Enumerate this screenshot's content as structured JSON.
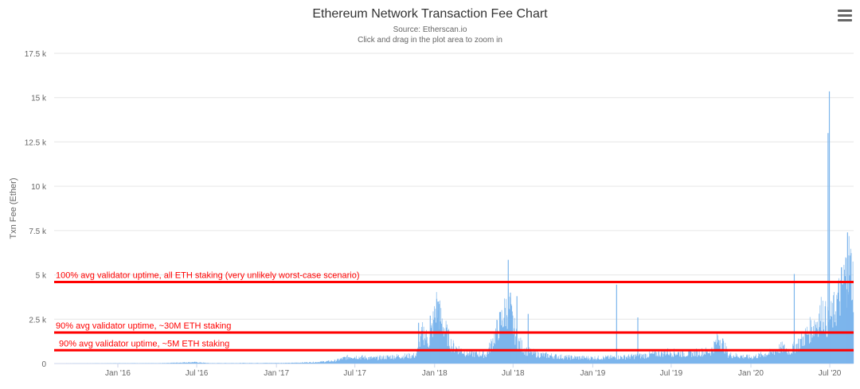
{
  "chart_data": {
    "type": "bar",
    "title": "Ethereum Network Transaction Fee Chart",
    "subtitle": "Source: Etherscan.io",
    "instruction": "Click and drag in the plot area to zoom in",
    "ylabel": "Txn Fee (Ether)",
    "ylim": [
      0,
      17500
    ],
    "y_ticks": [
      {
        "value": 0,
        "label": "0"
      },
      {
        "value": 2500,
        "label": "2.5 k"
      },
      {
        "value": 5000,
        "label": "5 k"
      },
      {
        "value": 7500,
        "label": "7.5 k"
      },
      {
        "value": 10000,
        "label": "10 k"
      },
      {
        "value": 12500,
        "label": "12.5 k"
      },
      {
        "value": 15000,
        "label": "15 k"
      },
      {
        "value": 17500,
        "label": "17.5 k"
      }
    ],
    "x_range": [
      "2015-08-07",
      "2020-08-25"
    ],
    "x_ticks": [
      {
        "date": "2016-01-01",
        "label": "Jan '16"
      },
      {
        "date": "2016-07-01",
        "label": "Jul '16"
      },
      {
        "date": "2017-01-01",
        "label": "Jan '17"
      },
      {
        "date": "2017-07-01",
        "label": "Jul '17"
      },
      {
        "date": "2018-01-01",
        "label": "Jan '18"
      },
      {
        "date": "2018-07-01",
        "label": "Jul '18"
      },
      {
        "date": "2019-01-01",
        "label": "Jan '19"
      },
      {
        "date": "2019-07-01",
        "label": "Jul '19"
      },
      {
        "date": "2020-01-01",
        "label": "Jan '20"
      },
      {
        "date": "2020-07-01",
        "label": "Jul '20"
      }
    ],
    "grid": true,
    "series": [
      {
        "color": "#7cb5ec",
        "points": [
          [
            "2015-08-07",
            0
          ],
          [
            "2015-12-01",
            10
          ],
          [
            "2016-01-15",
            20
          ],
          [
            "2016-04-01",
            15
          ],
          [
            "2016-06-25",
            80
          ],
          [
            "2016-08-01",
            20
          ],
          [
            "2016-12-01",
            30
          ],
          [
            "2017-02-01",
            35
          ],
          [
            "2017-04-01",
            80
          ],
          [
            "2017-05-15",
            150
          ],
          [
            "2017-06-20",
            400
          ],
          [
            "2017-08-15",
            300
          ],
          [
            "2017-10-01",
            400
          ],
          [
            "2017-11-20",
            450
          ],
          [
            "2017-12-05",
            1800
          ],
          [
            "2017-12-20",
            1200
          ],
          [
            "2018-01-05",
            3200
          ],
          [
            "2018-01-20",
            2200
          ],
          [
            "2018-02-10",
            1000
          ],
          [
            "2018-03-15",
            600
          ],
          [
            "2018-05-01",
            500
          ],
          [
            "2018-06-20",
            3300
          ],
          [
            "2018-07-10",
            1300
          ],
          [
            "2018-08-01",
            700
          ],
          [
            "2018-09-01",
            500
          ],
          [
            "2018-11-01",
            350
          ],
          [
            "2019-01-01",
            320
          ],
          [
            "2019-03-01",
            350
          ],
          [
            "2019-05-01",
            450
          ],
          [
            "2019-06-20",
            650
          ],
          [
            "2019-08-01",
            550
          ],
          [
            "2019-10-01",
            700
          ],
          [
            "2019-10-20",
            1500
          ],
          [
            "2019-11-10",
            500
          ],
          [
            "2020-01-01",
            350
          ],
          [
            "2020-02-15",
            600
          ],
          [
            "2020-03-12",
            900
          ],
          [
            "2020-04-01",
            700
          ],
          [
            "2020-05-01",
            1400
          ],
          [
            "2020-05-20",
            2000
          ],
          [
            "2020-06-05",
            2500
          ],
          [
            "2020-06-15",
            3000
          ],
          [
            "2020-06-25",
            2300
          ],
          [
            "2020-07-05",
            2600
          ],
          [
            "2020-07-15",
            3200
          ],
          [
            "2020-07-25",
            3900
          ],
          [
            "2020-08-05",
            4800
          ],
          [
            "2020-08-15",
            5600
          ],
          [
            "2020-08-25",
            4500
          ]
        ],
        "spikes": [
          [
            "2017-11-25",
            2300
          ],
          [
            "2017-12-22",
            2700
          ],
          [
            "2018-01-06",
            3650
          ],
          [
            "2018-01-10",
            3500
          ],
          [
            "2018-06-20",
            5850
          ],
          [
            "2018-06-25",
            4000
          ],
          [
            "2018-07-10",
            3800
          ],
          [
            "2018-08-05",
            2800
          ],
          [
            "2019-02-25",
            4450
          ],
          [
            "2019-04-15",
            2600
          ],
          [
            "2020-04-10",
            5050
          ],
          [
            "2020-06-27",
            13000
          ],
          [
            "2020-06-30",
            15350
          ],
          [
            "2020-07-20",
            4000
          ],
          [
            "2020-08-11",
            7400
          ],
          [
            "2020-08-14",
            6100
          ]
        ]
      }
    ],
    "annotations": [
      {
        "text": "100% avg validator uptime, all ETH staking (very unlikely worst-case scenario)",
        "y": 4600,
        "color": "#ff0000"
      },
      {
        "text": "90% avg validator uptime, ~30M ETH staking",
        "y": 1750,
        "color": "#ff0000"
      },
      {
        "text": "90% avg validator uptime, ~5M ETH staking",
        "y": 750,
        "color": "#ff0000"
      }
    ]
  },
  "ui": {
    "menu_icon": "hamburger-menu-icon"
  }
}
